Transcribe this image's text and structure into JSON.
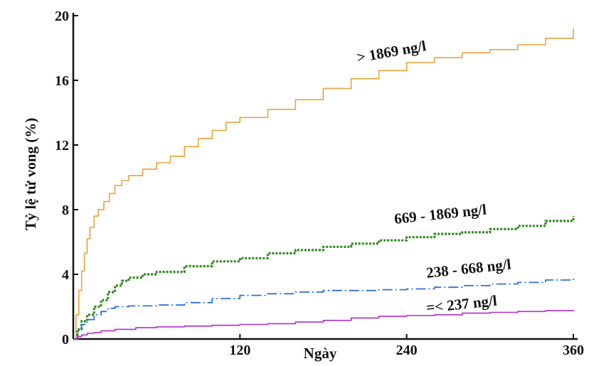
{
  "chart_data": {
    "type": "line",
    "xlabel": "Ngày",
    "ylabel": "Tỷ lệ tử vong (%)",
    "xlim": [
      0,
      360
    ],
    "ylim": [
      0,
      20
    ],
    "x_ticks": [
      120,
      240,
      360
    ],
    "y_ticks": [
      0,
      4,
      8,
      12,
      16,
      20
    ],
    "x_tick_labels": [
      "120",
      "240",
      "360"
    ],
    "y_tick_labels": [
      "0",
      "4",
      "8",
      "12",
      "16",
      "20"
    ],
    "grid": false,
    "legend": "inline labels",
    "series": [
      {
        "name": "> 1869 ng/l",
        "color": "#e8a23a",
        "style": "solid",
        "points": [
          [
            0,
            0
          ],
          [
            2,
            1.5
          ],
          [
            4,
            3
          ],
          [
            6,
            4.2
          ],
          [
            8,
            5.3
          ],
          [
            10,
            6.2
          ],
          [
            12,
            6.9
          ],
          [
            15,
            7.6
          ],
          [
            18,
            8.0
          ],
          [
            22,
            8.5
          ],
          [
            26,
            9.0
          ],
          [
            30,
            9.5
          ],
          [
            35,
            9.8
          ],
          [
            40,
            10.1
          ],
          [
            50,
            10.5
          ],
          [
            60,
            10.9
          ],
          [
            70,
            11.3
          ],
          [
            80,
            11.9
          ],
          [
            90,
            12.4
          ],
          [
            100,
            12.9
          ],
          [
            110,
            13.4
          ],
          [
            120,
            13.7
          ],
          [
            140,
            14.2
          ],
          [
            160,
            14.8
          ],
          [
            180,
            15.5
          ],
          [
            200,
            16.1
          ],
          [
            220,
            16.6
          ],
          [
            240,
            17.1
          ],
          [
            260,
            17.4
          ],
          [
            280,
            17.7
          ],
          [
            300,
            17.9
          ],
          [
            320,
            18.2
          ],
          [
            340,
            18.6
          ],
          [
            360,
            19.2
          ]
        ]
      },
      {
        "name": "669 - 1869 ng/l",
        "color": "#2e8b1e",
        "style": "dotted",
        "points": [
          [
            0,
            0
          ],
          [
            3,
            0.6
          ],
          [
            6,
            1.1
          ],
          [
            10,
            1.5
          ],
          [
            15,
            2.0
          ],
          [
            20,
            2.4
          ],
          [
            25,
            2.9
          ],
          [
            30,
            3.3
          ],
          [
            35,
            3.6
          ],
          [
            40,
            3.8
          ],
          [
            50,
            4.0
          ],
          [
            60,
            4.15
          ],
          [
            80,
            4.5
          ],
          [
            100,
            4.8
          ],
          [
            120,
            5.0
          ],
          [
            140,
            5.3
          ],
          [
            160,
            5.5
          ],
          [
            180,
            5.7
          ],
          [
            200,
            5.9
          ],
          [
            220,
            6.1
          ],
          [
            240,
            6.3
          ],
          [
            260,
            6.5
          ],
          [
            280,
            6.6
          ],
          [
            300,
            6.8
          ],
          [
            320,
            7.0
          ],
          [
            340,
            7.3
          ],
          [
            360,
            7.6
          ]
        ]
      },
      {
        "name": "238 - 668 ng/l",
        "color": "#2e6fe0",
        "style": "dashdot",
        "points": [
          [
            0,
            0
          ],
          [
            3,
            0.5
          ],
          [
            6,
            0.9
          ],
          [
            10,
            1.2
          ],
          [
            15,
            1.5
          ],
          [
            20,
            1.7
          ],
          [
            25,
            1.9
          ],
          [
            30,
            2.0
          ],
          [
            40,
            2.05
          ],
          [
            60,
            2.1
          ],
          [
            80,
            2.25
          ],
          [
            100,
            2.5
          ],
          [
            120,
            2.7
          ],
          [
            140,
            2.8
          ],
          [
            160,
            2.9
          ],
          [
            180,
            3.0
          ],
          [
            200,
            3.0
          ],
          [
            220,
            3.05
          ],
          [
            240,
            3.1
          ],
          [
            260,
            3.2
          ],
          [
            280,
            3.3
          ],
          [
            300,
            3.4
          ],
          [
            320,
            3.5
          ],
          [
            340,
            3.65
          ],
          [
            360,
            3.85
          ]
        ]
      },
      {
        "name": "=< 237 ng/l",
        "color": "#b02cc8",
        "style": "solid",
        "points": [
          [
            0,
            0
          ],
          [
            3,
            0.15
          ],
          [
            6,
            0.25
          ],
          [
            10,
            0.35
          ],
          [
            15,
            0.4
          ],
          [
            20,
            0.5
          ],
          [
            30,
            0.6
          ],
          [
            45,
            0.7
          ],
          [
            60,
            0.75
          ],
          [
            80,
            0.8
          ],
          [
            100,
            0.85
          ],
          [
            120,
            0.9
          ],
          [
            140,
            0.95
          ],
          [
            160,
            1.05
          ],
          [
            180,
            1.15
          ],
          [
            200,
            1.3
          ],
          [
            220,
            1.4
          ],
          [
            240,
            1.45
          ],
          [
            260,
            1.5
          ],
          [
            280,
            1.6
          ],
          [
            300,
            1.65
          ],
          [
            320,
            1.7
          ],
          [
            340,
            1.75
          ],
          [
            360,
            1.8
          ]
        ]
      }
    ]
  }
}
